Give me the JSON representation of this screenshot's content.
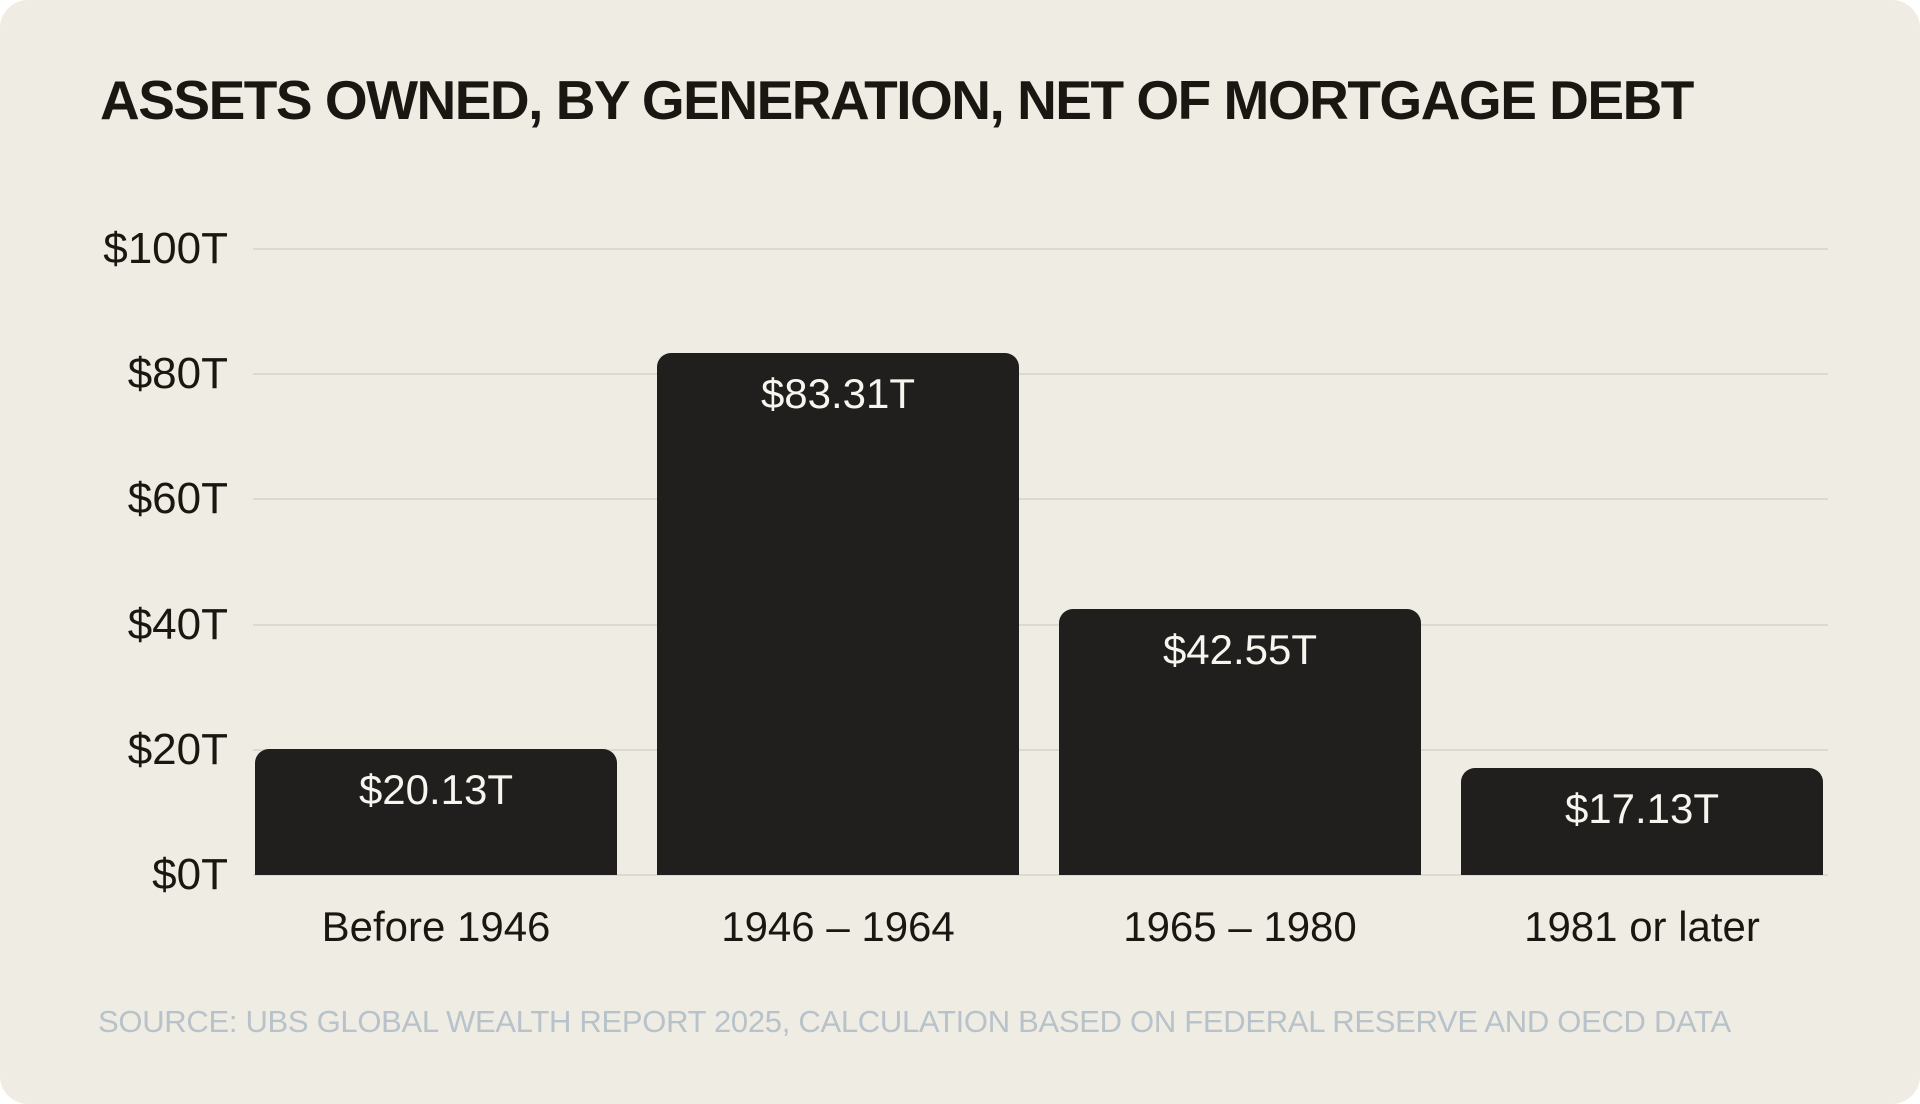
{
  "title": "ASSETS OWNED, BY GENERATION, NET OF MORTGAGE DEBT",
  "source": "SOURCE: UBS GLOBAL WEALTH REPORT 2025, CALCULATION BASED ON FEDERAL RESERVE AND OECD DATA",
  "colors": {
    "card_background": "#efece3",
    "page_background": "#ffffff",
    "bar": "#211f1d",
    "gridline": "#dcd9d0",
    "text": "#1a1712",
    "bar_label_text": "#f7f5ee",
    "source_text": "#b7c2ca"
  },
  "chart_data": {
    "type": "bar",
    "title": "ASSETS OWNED, BY GENERATION, NET OF MORTGAGE DEBT",
    "categories": [
      "Before 1946",
      "1946 – 1964",
      "1965 – 1980",
      "1981 or later"
    ],
    "values": [
      20.13,
      83.31,
      42.55,
      17.13
    ],
    "value_labels": [
      "$20.13T",
      "$83.31T",
      "$42.55T",
      "$17.13T"
    ],
    "xlabel": "",
    "ylabel": "",
    "ylim": [
      0,
      100
    ],
    "yticks": [
      0,
      20,
      40,
      60,
      80,
      100
    ],
    "ytick_labels": [
      "$0T",
      "$20T",
      "$40T",
      "$60T",
      "$80T",
      "$100T"
    ],
    "grid": true,
    "legend": false,
    "source": "SOURCE: UBS GLOBAL WEALTH REPORT 2025, CALCULATION BASED ON FEDERAL RESERVE AND OECD DATA"
  }
}
